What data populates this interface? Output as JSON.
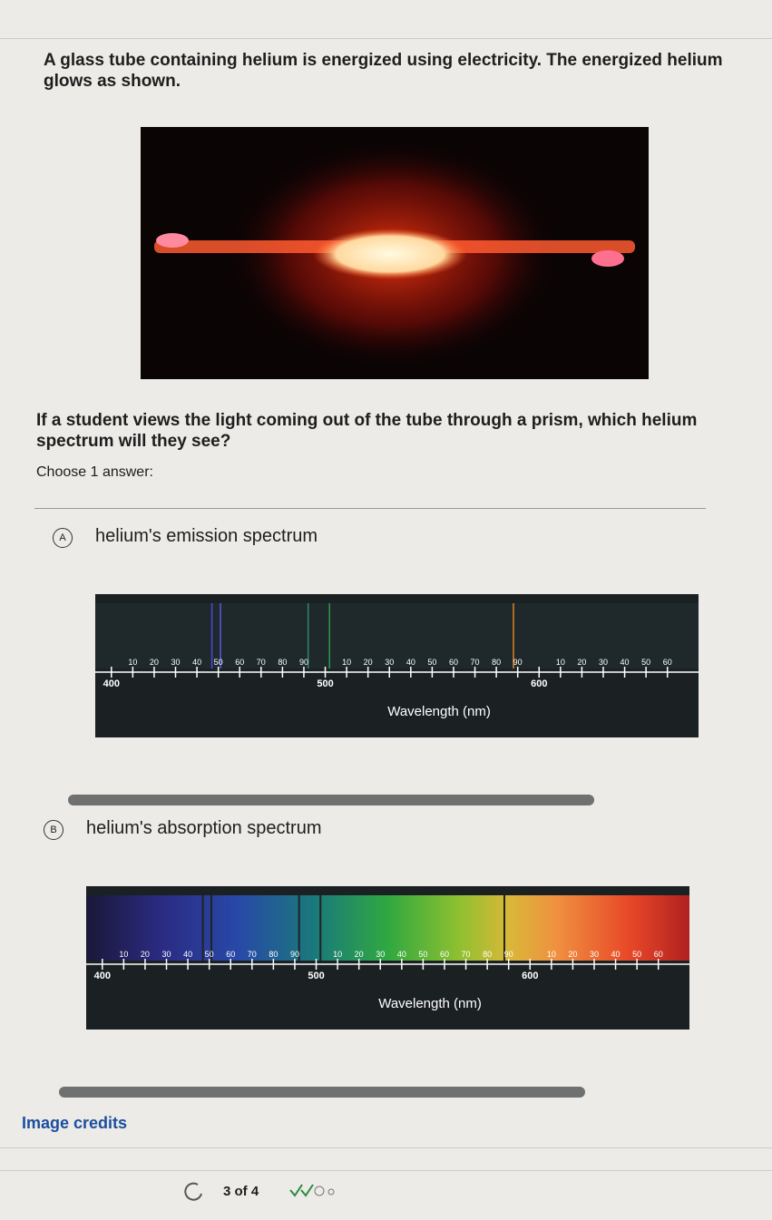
{
  "question": {
    "intro": "A glass tube containing helium is energized using electricity. The energized helium glows as shown.",
    "prompt": "If a student views the light coming out of the tube through a prism, which helium spectrum will they see?",
    "instruction": "Choose 1 answer:"
  },
  "spectrum_axis": {
    "label": "Wavelength (nm)",
    "xlim": [
      395,
      672
    ],
    "xticks": [
      400,
      {
        "value": 410,
        "label": "10"
      },
      {
        "value": 420,
        "label": "20"
      },
      {
        "value": 430,
        "label": "30"
      },
      {
        "value": 440,
        "label": "40"
      },
      {
        "value": 450,
        "label": "50"
      },
      {
        "value": 460,
        "label": "60"
      },
      {
        "value": 470,
        "label": "70"
      },
      {
        "value": 480,
        "label": "80"
      },
      {
        "value": 490,
        "label": "90"
      },
      500,
      {
        "value": 510,
        "label": "10"
      },
      {
        "value": 520,
        "label": "20"
      },
      {
        "value": 530,
        "label": "30"
      },
      {
        "value": 540,
        "label": "40"
      },
      {
        "value": 550,
        "label": "50"
      },
      {
        "value": 560,
        "label": "60"
      },
      {
        "value": 570,
        "label": "70"
      },
      {
        "value": 580,
        "label": "80"
      },
      {
        "value": 590,
        "label": "90"
      },
      600,
      {
        "value": 610,
        "label": "10"
      },
      {
        "value": 620,
        "label": "20"
      },
      {
        "value": 630,
        "label": "30"
      },
      {
        "value": 640,
        "label": "40"
      },
      {
        "value": 650,
        "label": "50"
      },
      {
        "value": 660,
        "label": "60"
      }
    ]
  },
  "choices": [
    {
      "letter": "A",
      "label": "helium's emission spectrum",
      "kind": "emission",
      "lines_nm": [
        447,
        451,
        492,
        502,
        588
      ],
      "line_colors": [
        "#4a4ad8",
        "#5a5ae0",
        "#2c8a6a",
        "#2a9a50",
        "#e08020"
      ]
    },
    {
      "letter": "B",
      "label": "helium's absorption spectrum",
      "kind": "absorption",
      "lines_nm": [
        447,
        451,
        492,
        502,
        588
      ],
      "line_colors": [
        "#222",
        "#222",
        "#222",
        "#222",
        "#222"
      ]
    }
  ],
  "footer": {
    "credits": "Image credits",
    "progress": "3 of 4"
  }
}
